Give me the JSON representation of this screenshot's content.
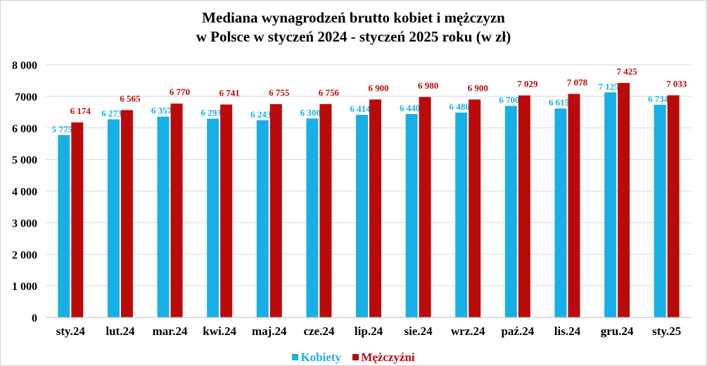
{
  "title_line1": "Mediana wynagrodzeń  brutto  kobiet i mężczyzn",
  "title_line2": "w  Polsce w  styczeń 2024 - styczeń 2025 roku (w  zł)",
  "colors": {
    "kobiety": "#17B0E6",
    "mezczyzni": "#BB0A0A",
    "grid": "#d9d9d9",
    "axis": "#bfbfbf"
  },
  "chart_data": {
    "type": "bar",
    "title": "Mediana wynagrodzeń  brutto  kobiet i mężczyzn w  Polsce w  styczeń 2024 - styczeń 2025 roku (w  zł)",
    "categories": [
      "sty.24",
      "lut.24",
      "mar.24",
      "kwi.24",
      "maj.24",
      "cze.24",
      "lip.24",
      "sie.24",
      "wrz.24",
      "paź.24",
      "lis.24",
      "gru.24",
      "sty.25"
    ],
    "series": [
      {
        "name": "Kobiety",
        "values": [
          5775,
          6273,
          6357,
          6293,
          6243,
          6300,
          6414,
          6440,
          6486,
          6700,
          6615,
          7125,
          6734
        ],
        "labels": [
          "5 775",
          "6 273",
          "6 357",
          "6 293",
          "6 243",
          "6 300",
          "6 414",
          "6 440",
          "6 486",
          "6 700",
          "6 615",
          "7 125",
          "6 734"
        ]
      },
      {
        "name": "Mężczyźni",
        "values": [
          6174,
          6565,
          6770,
          6741,
          6755,
          6756,
          6900,
          6980,
          6900,
          7029,
          7078,
          7425,
          7033
        ],
        "labels": [
          "6 174",
          "6 565",
          "6 770",
          "6 741",
          "6 755",
          "6 756",
          "6 900",
          "6 980",
          "6 900",
          "7 029",
          "7 078",
          "7 425",
          "7 033"
        ]
      }
    ],
    "ylim": [
      0,
      8000
    ],
    "yticks": [
      0,
      1000,
      2000,
      3000,
      4000,
      5000,
      6000,
      7000,
      8000
    ],
    "ytick_labels": [
      "0",
      "1 000",
      "2 000",
      "3 000",
      "4 000",
      "5 000",
      "6 000",
      "7000",
      "8 000"
    ],
    "grid": true,
    "legend_position": "bottom"
  }
}
